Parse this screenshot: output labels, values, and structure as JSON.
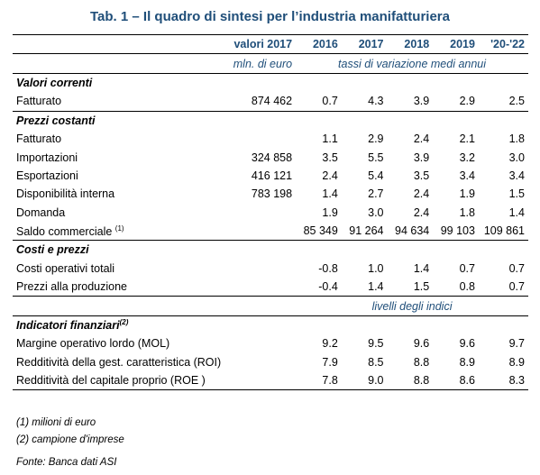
{
  "title": "Tab. 1 – Il quadro di sintesi per l’industria manifatturiera",
  "header": {
    "label_col": "",
    "value_col": "valori 2017",
    "years": [
      "2016",
      "2017",
      "2018",
      "2019",
      "'20-'22"
    ]
  },
  "units": {
    "value_unit": "mln. di euro",
    "rates_unit": "tassi di variazione medi annui"
  },
  "sections": {
    "valori_correnti": "Valori correnti",
    "prezzi_costanti": "Prezzi costanti",
    "costi_prezzi": "Costi e prezzi",
    "indicatori": "Indicatori finanziari",
    "indicatori_note": "(2)"
  },
  "rows": {
    "fatturato_corr": {
      "label": "Fatturato",
      "value": "874 462",
      "c": [
        "0.7",
        "4.3",
        "3.9",
        "2.9",
        "2.5"
      ]
    },
    "fatturato_cost": {
      "label": "Fatturato",
      "value": "",
      "c": [
        "1.1",
        "2.9",
        "2.4",
        "2.1",
        "1.8"
      ]
    },
    "importazioni": {
      "label": "Importazioni",
      "value": "324 858",
      "c": [
        "3.5",
        "5.5",
        "3.9",
        "3.2",
        "3.0"
      ]
    },
    "esportazioni": {
      "label": "Esportazioni",
      "value": "416 121",
      "c": [
        "2.4",
        "5.4",
        "3.5",
        "3.4",
        "3.4"
      ]
    },
    "disponibilita": {
      "label": "Disponibilità interna",
      "value": "783 198",
      "c": [
        "1.4",
        "2.7",
        "2.4",
        "1.9",
        "1.5"
      ]
    },
    "domanda": {
      "label": "Domanda",
      "value": "",
      "c": [
        "1.9",
        "3.0",
        "2.4",
        "1.8",
        "1.4"
      ]
    },
    "saldo": {
      "label": "Saldo commerciale",
      "note": "(1)",
      "c": [
        "85 349",
        "91 264",
        "94 634",
        "99 103",
        "109 861"
      ]
    },
    "costi_operativi": {
      "label": "Costi operativi totali",
      "value": "",
      "c": [
        "-0.8",
        "1.0",
        "1.4",
        "0.7",
        "0.7"
      ]
    },
    "prezzi_produzione": {
      "label": "Prezzi alla produzione",
      "value": "",
      "c": [
        "-0.4",
        "1.4",
        "1.5",
        "0.8",
        "0.7"
      ]
    },
    "mol": {
      "label": "Margine operativo lordo (MOL)",
      "c": [
        "9.2",
        "9.5",
        "9.6",
        "9.6",
        "9.7"
      ]
    },
    "roi": {
      "label": "Redditività della gest. caratteristica (ROI)",
      "c": [
        "7.9",
        "8.5",
        "8.8",
        "8.9",
        "8.9"
      ]
    },
    "roe": {
      "label": "Redditività del capitale proprio (ROE )",
      "c": [
        "7.8",
        "9.0",
        "8.8",
        "8.6",
        "8.3"
      ]
    }
  },
  "indices_label": "livelli degli indici",
  "notes": [
    "(1) milioni di euro",
    "(2) campione d'imprese"
  ],
  "source": "Fonte: Banca dati ASI"
}
